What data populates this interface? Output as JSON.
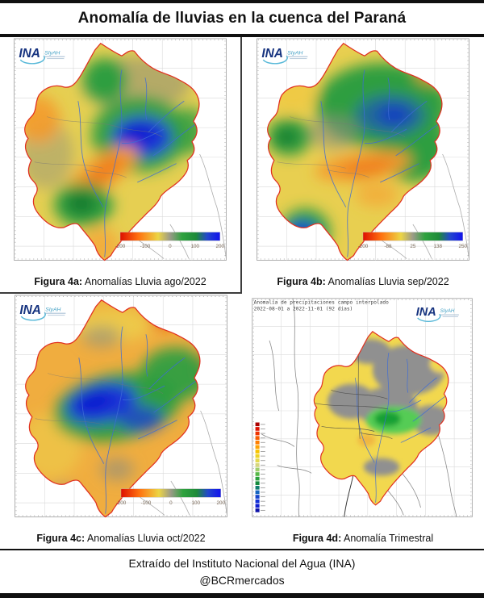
{
  "title": "Anomalía de lluvias en la cuenca del Paraná",
  "footer": {
    "source_line": "Extraído del Instituto Nacional del Agua (INA)",
    "handle": "@BCRmercados"
  },
  "logo": {
    "ina": "INA",
    "siyah": "SIyAH"
  },
  "panels": [
    {
      "id": "4a",
      "caption_label": "Figura 4a:",
      "caption_text": " Anomalías Lluvia ago/2022",
      "legend": {
        "orientation": "horizontal",
        "ticks": [
          "-200",
          "-100",
          "0",
          "100",
          "200"
        ]
      }
    },
    {
      "id": "4b",
      "caption_label": "Figura 4b:",
      "caption_text": " Anomalías Lluvia sep/2022",
      "legend": {
        "orientation": "horizontal",
        "ticks": [
          "-200",
          "-88",
          "25",
          "138",
          "250"
        ]
      }
    },
    {
      "id": "4c",
      "caption_label": "Figura 4c:",
      "caption_text": " Anomalías Lluvia oct/2022",
      "legend": {
        "orientation": "horizontal",
        "ticks": [
          "-200",
          "-100",
          "0",
          "100",
          "200"
        ]
      }
    },
    {
      "id": "4d",
      "caption_label": "Figura 4d:",
      "caption_text": " Anomalía Trimestral",
      "header_line1": "Anomalía de precipitaciones campo interpolado",
      "header_line2": "2022-08-01 a 2022-11-01 (92 días)",
      "legend": {
        "orientation": "vertical",
        "colors": [
          "#aa0000",
          "#dd1100",
          "#ee3300",
          "#f75c00",
          "#ff7e00",
          "#ffa200",
          "#f7c300",
          "#eed323",
          "#e3d94e",
          "#d6d67e",
          "#9fce6b",
          "#57b847",
          "#2aa13c",
          "#128a3a",
          "#0f7e6e",
          "#1565c0",
          "#1443cc",
          "#1230d6",
          "#101fd0",
          "#0d12a8"
        ]
      }
    }
  ],
  "colors": {
    "deficit_orange": "#f49b2d",
    "surplus_green": "#2f9e41",
    "strong_surplus_blue": "#1b35d6",
    "basin_outline_red": "#e03020",
    "no_data_gray": "#8d8d7f",
    "scale_gradient": [
      "#dd1000",
      "#ff7010",
      "#ecd545",
      "#9a9a88",
      "#2fa23e",
      "#1e8a3a",
      "#2348cc",
      "#1212ee"
    ]
  }
}
